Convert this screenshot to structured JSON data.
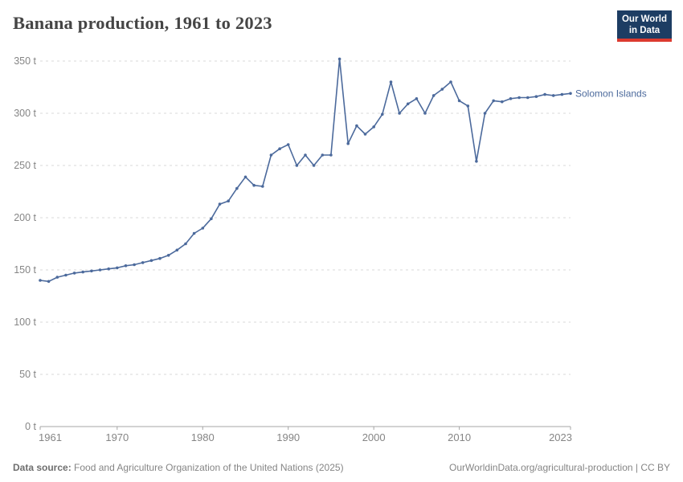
{
  "header": {
    "title": "Banana production, 1961 to 2023"
  },
  "logo": {
    "line1": "Our World",
    "line2": "in Data"
  },
  "footer": {
    "source_label": "Data source:",
    "source_text": " Food and Agriculture Organization of the United Nations (2025)",
    "right_text": "OurWorldinData.org/agricultural-production | CC BY"
  },
  "chart_data": {
    "type": "line",
    "title": "Banana production, 1961 to 2023",
    "series_label": "Solomon Islands",
    "unit": "t",
    "x": [
      1961,
      1962,
      1963,
      1964,
      1965,
      1966,
      1967,
      1968,
      1969,
      1970,
      1971,
      1972,
      1973,
      1974,
      1975,
      1976,
      1977,
      1978,
      1979,
      1980,
      1981,
      1982,
      1983,
      1984,
      1985,
      1986,
      1987,
      1988,
      1989,
      1990,
      1991,
      1992,
      1993,
      1994,
      1995,
      1996,
      1997,
      1998,
      1999,
      2000,
      2001,
      2002,
      2003,
      2004,
      2005,
      2006,
      2007,
      2008,
      2009,
      2010,
      2011,
      2012,
      2013,
      2014,
      2015,
      2016,
      2017,
      2018,
      2019,
      2020,
      2021,
      2022,
      2023
    ],
    "values": [
      140,
      139,
      143,
      145,
      147,
      148,
      149,
      150,
      151,
      152,
      154,
      155,
      157,
      159,
      161,
      164,
      169,
      175,
      185,
      190,
      199,
      213,
      216,
      228,
      239,
      231,
      230,
      260,
      266,
      270,
      250,
      260,
      250,
      260,
      260,
      352,
      271,
      288,
      280,
      287,
      299,
      330,
      300,
      309,
      314,
      300,
      317,
      323,
      330,
      312,
      307,
      254,
      300,
      312,
      311,
      314,
      315,
      315,
      316,
      318,
      317,
      318,
      319
    ],
    "xticks": [
      1961,
      1970,
      1980,
      1990,
      2000,
      2010,
      2023
    ],
    "yticks": [
      0,
      50,
      100,
      150,
      200,
      250,
      300,
      350
    ],
    "ytick_suffix": " t",
    "xlim": [
      1961,
      2023
    ],
    "ylim": [
      0,
      350
    ],
    "grid": true,
    "legend_position": "end-of-line",
    "line_color": "#4c6a9c",
    "label_color": "#4c6a9c",
    "grid_color": "#dadada",
    "axis_color": "#a5a5a5",
    "tick_label_color": "#858585"
  }
}
